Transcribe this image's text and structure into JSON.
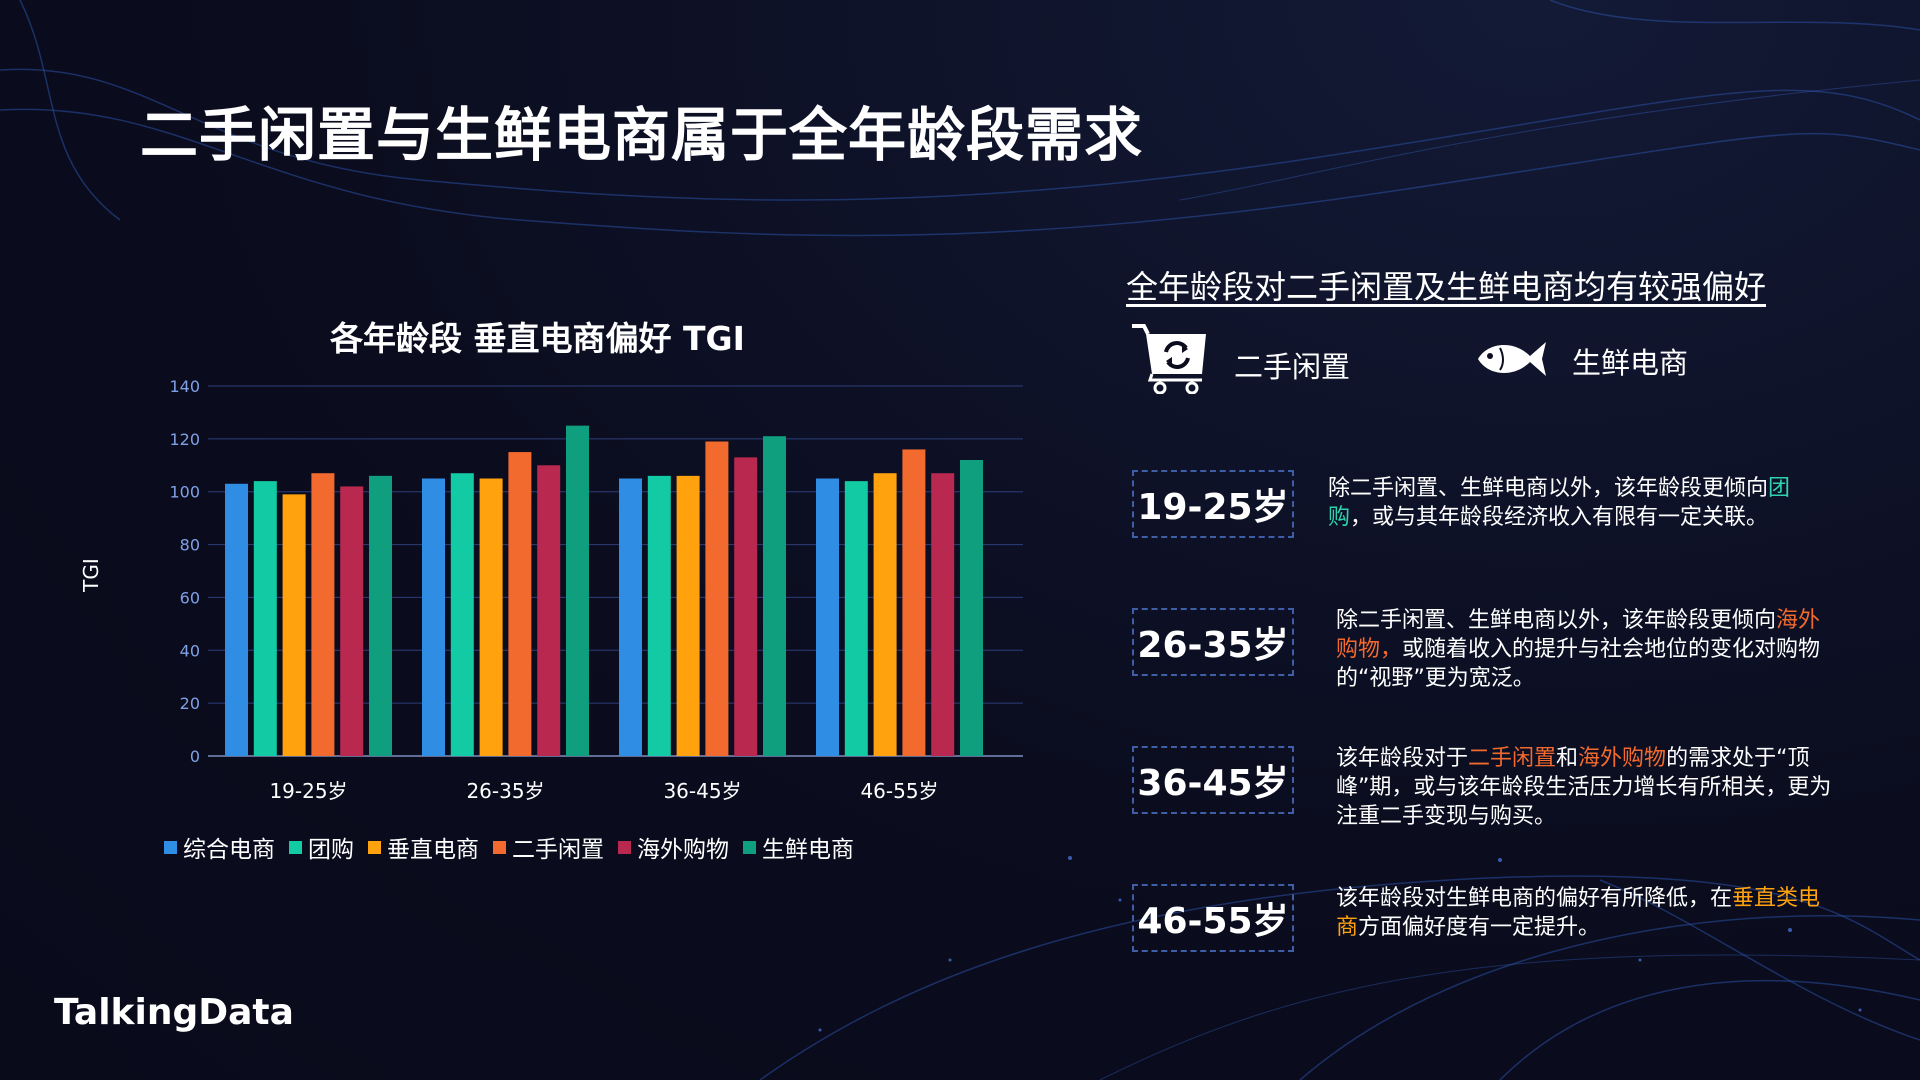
{
  "page": {
    "title": "二手闲置与生鲜电商属于全年龄段需求",
    "logo": "TalkingData"
  },
  "chart_data": {
    "type": "bar",
    "title": "各年龄段 垂直电商偏好 TGI",
    "xlabel": "",
    "ylabel": "TGI",
    "ylim": [
      0,
      140
    ],
    "yticks": [
      0,
      20,
      40,
      60,
      80,
      100,
      120,
      140
    ],
    "grid": true,
    "legend_position": "bottom",
    "categories": [
      "19-25岁",
      "26-35岁",
      "36-45岁",
      "46-55岁"
    ],
    "series": [
      {
        "name": "综合电商",
        "color": "#2f8de4",
        "values": [
          103,
          105,
          105,
          105
        ]
      },
      {
        "name": "团购",
        "color": "#12cba4",
        "values": [
          104,
          107,
          106,
          104
        ]
      },
      {
        "name": "垂直电商",
        "color": "#ffa20e",
        "values": [
          99,
          105,
          106,
          107
        ]
      },
      {
        "name": "二手闲置",
        "color": "#f26a2e",
        "values": [
          107,
          115,
          119,
          116
        ]
      },
      {
        "name": "海外购物",
        "color": "#b8284f",
        "values": [
          102,
          110,
          113,
          107
        ]
      },
      {
        "name": "生鲜电商",
        "color": "#0f9e7e",
        "values": [
          106,
          125,
          121,
          112
        ]
      }
    ]
  },
  "right_panel": {
    "heading": "全年龄段对二手闲置及生鲜电商均有较强偏好",
    "categories": [
      {
        "icon": "shopping-cart-icon",
        "label": "二手闲置"
      },
      {
        "icon": "fish-icon",
        "label": "生鲜电商"
      }
    ],
    "age_groups": [
      {
        "age": "19-25岁",
        "desc": [
          {
            "text": "除二手闲置、生鲜电商以外，该年龄段更倾向",
            "style": ""
          },
          {
            "text": "团购",
            "style": "green"
          },
          {
            "text": "，或与其年龄段经济收入有限有一定关联。",
            "style": ""
          }
        ]
      },
      {
        "age": "26-35岁",
        "desc": [
          {
            "text": "除二手闲置、生鲜电商以外，该年龄段更倾向",
            "style": ""
          },
          {
            "text": "海外购物，",
            "style": "orange"
          },
          {
            "text": "或随着收入的提升与社会地位的变化对购物的“视野”更为宽泛。",
            "style": ""
          }
        ]
      },
      {
        "age": "36-45岁",
        "desc": [
          {
            "text": "该年龄段对于",
            "style": ""
          },
          {
            "text": "二手闲置",
            "style": "orange"
          },
          {
            "text": "和",
            "style": ""
          },
          {
            "text": "海外购物",
            "style": "orange"
          },
          {
            "text": "的需求处于“顶峰”期，或与该年龄段生活压力增长有所相关，更为注重二手变现与购买。",
            "style": ""
          }
        ]
      },
      {
        "age": "46-55岁",
        "desc": [
          {
            "text": "该年龄段对生鲜电商的偏好有所降低，在",
            "style": ""
          },
          {
            "text": "垂直类电商",
            "style": "yellow"
          },
          {
            "text": "方面偏好度有一定提升。",
            "style": ""
          }
        ]
      }
    ]
  }
}
